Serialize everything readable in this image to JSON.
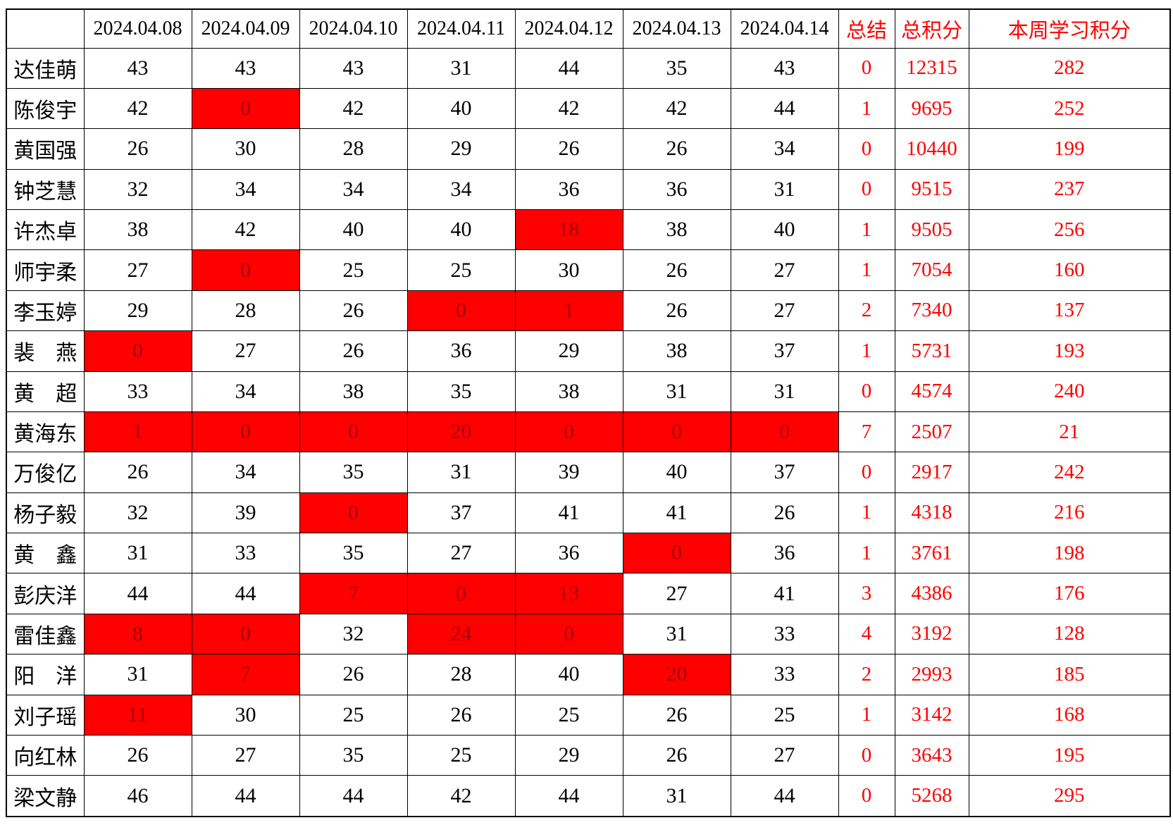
{
  "table": {
    "columns": {
      "corner": "",
      "dates": [
        "2024.04.08",
        "2024.04.09",
        "2024.04.10",
        "2024.04.11",
        "2024.04.12",
        "2024.04.13",
        "2024.04.14"
      ],
      "summary": [
        "总结",
        "总积分",
        "本周学习积分"
      ]
    },
    "colors": {
      "flag_cell_background": "#ff0000",
      "flag_cell_text": "#a50000",
      "accent_text": "#ff0000",
      "border": "#000000"
    },
    "rows": [
      {
        "name": "达佳萌",
        "daily": [
          "43",
          "43",
          "43",
          "31",
          "44",
          "35",
          "43"
        ],
        "flagged": [],
        "summary": "0",
        "total": "12315",
        "week": "282"
      },
      {
        "name": "陈俊宇",
        "daily": [
          "42",
          "0",
          "42",
          "40",
          "42",
          "42",
          "44"
        ],
        "flagged": [
          1
        ],
        "summary": "1",
        "total": "9695",
        "week": "252"
      },
      {
        "name": "黄国强",
        "daily": [
          "26",
          "30",
          "28",
          "29",
          "26",
          "26",
          "34"
        ],
        "flagged": [],
        "summary": "0",
        "total": "10440",
        "week": "199"
      },
      {
        "name": "钟芝慧",
        "daily": [
          "32",
          "34",
          "34",
          "34",
          "36",
          "36",
          "31"
        ],
        "flagged": [],
        "summary": "0",
        "total": "9515",
        "week": "237"
      },
      {
        "name": "许杰卓",
        "daily": [
          "38",
          "42",
          "40",
          "40",
          "18",
          "38",
          "40"
        ],
        "flagged": [
          4
        ],
        "summary": "1",
        "total": "9505",
        "week": "256"
      },
      {
        "name": "师宇柔",
        "daily": [
          "27",
          "0",
          "25",
          "25",
          "30",
          "26",
          "27"
        ],
        "flagged": [
          1
        ],
        "summary": "1",
        "total": "7054",
        "week": "160"
      },
      {
        "name": "李玉婷",
        "daily": [
          "29",
          "28",
          "26",
          "0",
          "1",
          "26",
          "27"
        ],
        "flagged": [
          3,
          4
        ],
        "summary": "2",
        "total": "7340",
        "week": "137"
      },
      {
        "name": "裴　燕",
        "daily": [
          "0",
          "27",
          "26",
          "36",
          "29",
          "38",
          "37"
        ],
        "flagged": [
          0
        ],
        "summary": "1",
        "total": "5731",
        "week": "193"
      },
      {
        "name": "黄　超",
        "daily": [
          "33",
          "34",
          "38",
          "35",
          "38",
          "31",
          "31"
        ],
        "flagged": [],
        "summary": "0",
        "total": "4574",
        "week": "240"
      },
      {
        "name": "黄海东",
        "daily": [
          "1",
          "0",
          "0",
          "20",
          "0",
          "0",
          "0"
        ],
        "flagged": [
          0,
          1,
          2,
          3,
          4,
          5,
          6
        ],
        "summary": "7",
        "total": "2507",
        "week": "21"
      },
      {
        "name": "万俊亿",
        "daily": [
          "26",
          "34",
          "35",
          "31",
          "39",
          "40",
          "37"
        ],
        "flagged": [],
        "summary": "0",
        "total": "2917",
        "week": "242"
      },
      {
        "name": "杨子毅",
        "daily": [
          "32",
          "39",
          "0",
          "37",
          "41",
          "41",
          "26"
        ],
        "flagged": [
          2
        ],
        "summary": "1",
        "total": "4318",
        "week": "216"
      },
      {
        "name": "黄　鑫",
        "daily": [
          "31",
          "33",
          "35",
          "27",
          "36",
          "0",
          "36"
        ],
        "flagged": [
          5
        ],
        "summary": "1",
        "total": "3761",
        "week": "198"
      },
      {
        "name": "彭庆洋",
        "daily": [
          "44",
          "44",
          "7",
          "0",
          "13",
          "27",
          "41"
        ],
        "flagged": [
          2,
          3,
          4
        ],
        "summary": "3",
        "total": "4386",
        "week": "176"
      },
      {
        "name": "雷佳鑫",
        "daily": [
          "8",
          "0",
          "32",
          "24",
          "0",
          "31",
          "33"
        ],
        "flagged": [
          0,
          1,
          3,
          4
        ],
        "summary": "4",
        "total": "3192",
        "week": "128"
      },
      {
        "name": "阳　洋",
        "daily": [
          "31",
          "7",
          "26",
          "28",
          "40",
          "20",
          "33"
        ],
        "flagged": [
          1,
          5
        ],
        "summary": "2",
        "total": "2993",
        "week": "185"
      },
      {
        "name": "刘子瑶",
        "daily": [
          "11",
          "30",
          "25",
          "26",
          "25",
          "26",
          "25"
        ],
        "flagged": [
          0
        ],
        "summary": "1",
        "total": "3142",
        "week": "168"
      },
      {
        "name": "向红林",
        "daily": [
          "26",
          "27",
          "35",
          "25",
          "29",
          "26",
          "27"
        ],
        "flagged": [],
        "summary": "0",
        "total": "3643",
        "week": "195"
      },
      {
        "name": "梁文静",
        "daily": [
          "46",
          "44",
          "44",
          "42",
          "44",
          "31",
          "44"
        ],
        "flagged": [],
        "summary": "0",
        "total": "5268",
        "week": "295"
      }
    ]
  }
}
